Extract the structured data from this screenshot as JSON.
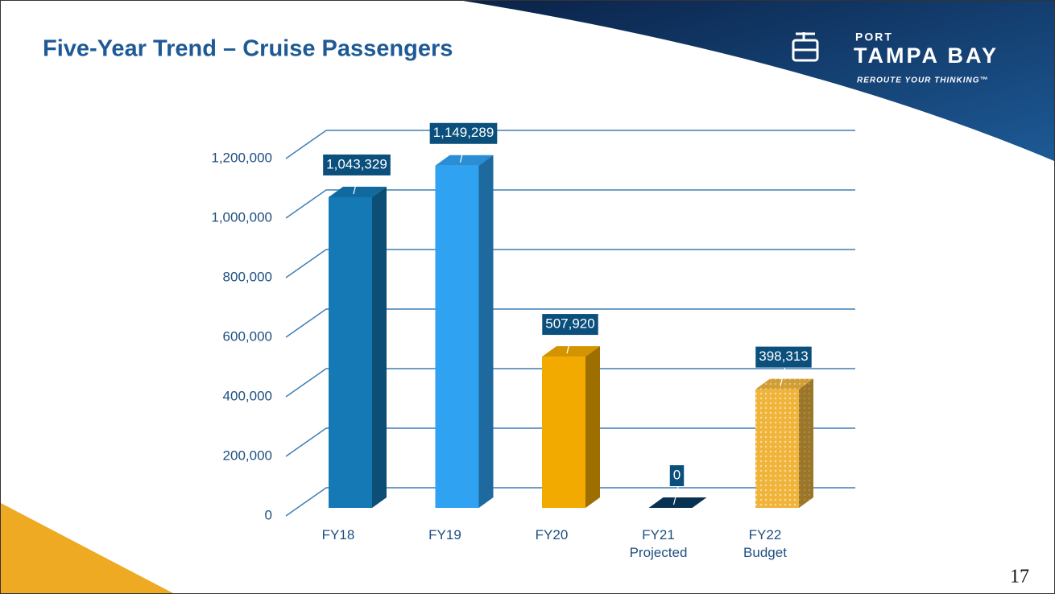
{
  "chart_data": {
    "type": "bar3d",
    "title": "Five-Year Trend – Cruise Passengers",
    "categories": [
      "FY18",
      "FY19",
      "FY20",
      "FY21\nProjected",
      "FY22\nBudget"
    ],
    "values": [
      1043329,
      1149289,
      507920,
      0,
      398313
    ],
    "value_labels": [
      "1,043,329",
      "1,149,289",
      "507,920",
      "0",
      "398,313"
    ],
    "colors": [
      "#1479b5",
      "#2fa2f2",
      "#f2a900",
      "#0b3a5e",
      "#f0b43a"
    ],
    "dotted": [
      false,
      false,
      false,
      false,
      true
    ],
    "ylim": [
      0,
      1200000
    ],
    "yticks": [
      0,
      {
        "value": 200000,
        "label": "200,000"
      },
      {
        "value": 400000,
        "label": "400,000"
      },
      {
        "value": 600000,
        "label": "600,000"
      },
      {
        "value": 800000,
        "label": "800,000"
      },
      {
        "value": 1000000,
        "label": "1,000,000"
      },
      {
        "value": 1200000,
        "label": "1,200,000"
      }
    ],
    "grid": true
  },
  "slide": {
    "logo_top": "PORT",
    "logo_name": "TAMPA BAY",
    "tagline": "REROUTE YOUR THINKING™",
    "page_number": "17"
  }
}
